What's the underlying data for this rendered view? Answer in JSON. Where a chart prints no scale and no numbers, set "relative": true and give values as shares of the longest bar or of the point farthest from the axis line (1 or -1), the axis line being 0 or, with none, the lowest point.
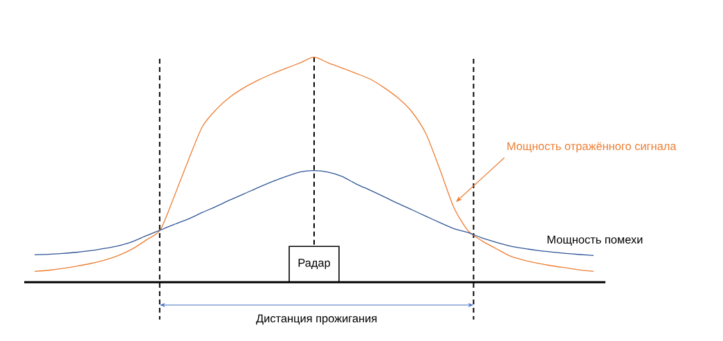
{
  "chart_data": {
    "type": "line",
    "relative": true,
    "categories": [
      null,
      null,
      null,
      null,
      null,
      null,
      null,
      null,
      null,
      null,
      null,
      null,
      null,
      null,
      null,
      null,
      null,
      null,
      null,
      null,
      null,
      null,
      null,
      null,
      null,
      null,
      null,
      null,
      null,
      null,
      null,
      null,
      null,
      null,
      null,
      null,
      null,
      null,
      null,
      null,
      null
    ],
    "series": [
      {
        "name": "Мощность отражённого сигнала",
        "color": "#ed7d31",
        "values": [
          0.048,
          0.053,
          0.061,
          0.071,
          0.083,
          0.098,
          0.119,
          0.148,
          0.188,
          0.233,
          0.383,
          0.542,
          0.691,
          0.768,
          0.824,
          0.865,
          0.898,
          0.926,
          0.951,
          0.975,
          1.0,
          0.975,
          0.952,
          0.928,
          0.903,
          0.865,
          0.819,
          0.757,
          0.66,
          0.501,
          0.332,
          0.23,
          0.184,
          0.15,
          0.117,
          0.098,
          0.084,
          0.073,
          0.064,
          0.055,
          0.048
        ]
      },
      {
        "name": "Мощность помехи",
        "color": "#2f5597",
        "values": [
          0.122,
          0.124,
          0.128,
          0.133,
          0.14,
          0.15,
          0.162,
          0.18,
          0.207,
          0.232,
          0.257,
          0.281,
          0.31,
          0.337,
          0.366,
          0.393,
          0.421,
          0.447,
          0.47,
          0.49,
          0.496,
          0.489,
          0.47,
          0.437,
          0.409,
          0.38,
          0.35,
          0.322,
          0.293,
          0.265,
          0.238,
          0.221,
          0.197,
          0.178,
          0.161,
          0.15,
          0.141,
          0.134,
          0.128,
          0.123,
          0.119
        ]
      }
    ],
    "annotations": [
      "Радар",
      "Дистанция прожигания"
    ]
  }
}
